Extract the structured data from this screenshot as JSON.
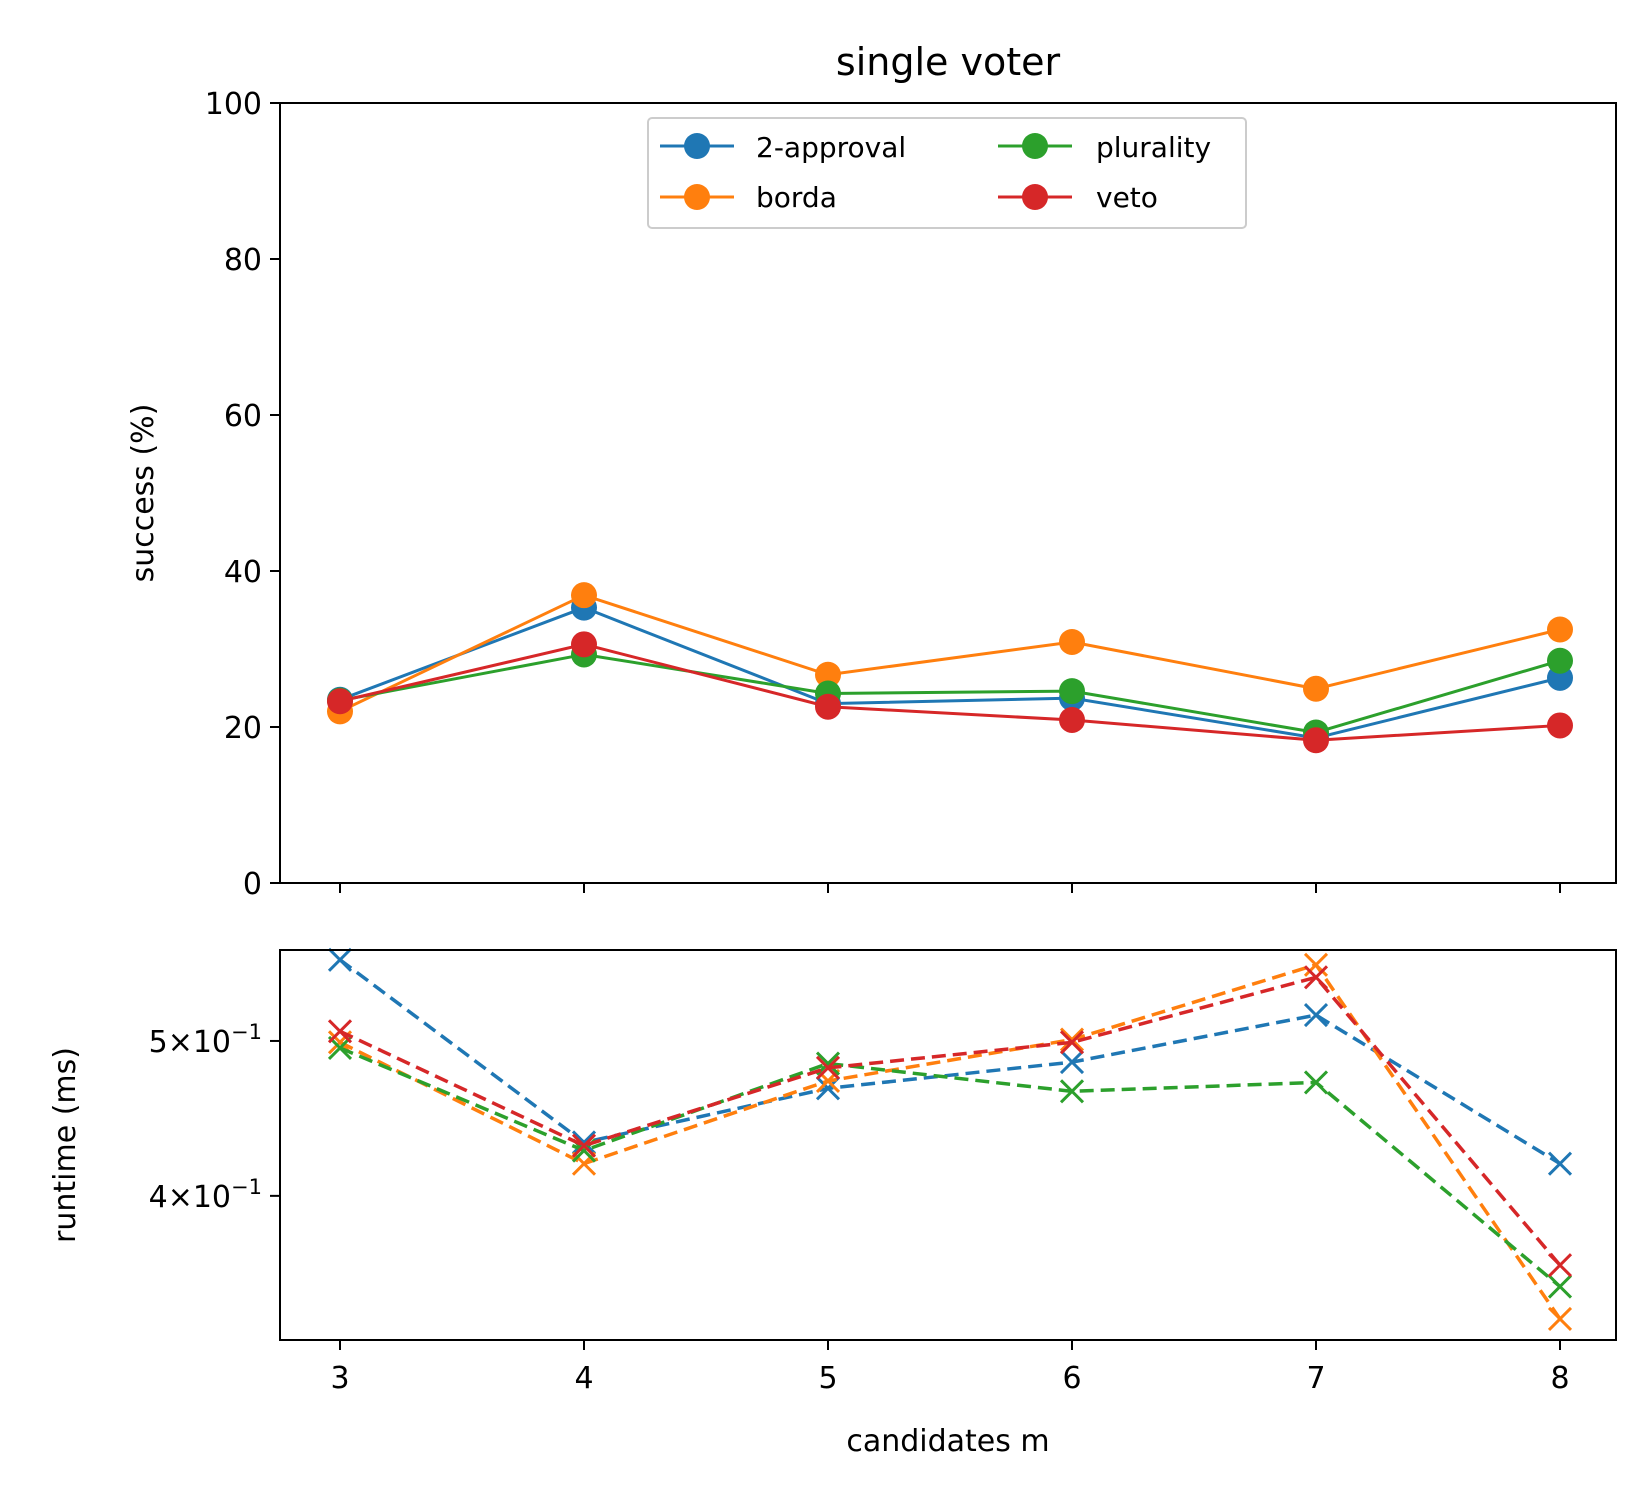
{
  "chart_data": [
    {
      "type": "line",
      "title": "single voter",
      "xlabel": "",
      "ylabel": "success (%)",
      "ylim": [
        0,
        100
      ],
      "y_ticks": [
        "0",
        "20",
        "40",
        "60",
        "80",
        "100"
      ],
      "x": [
        3,
        4,
        5,
        6,
        7,
        8
      ],
      "grid": false,
      "legend": {
        "placement": "upper center",
        "columns": 2
      },
      "series": [
        {
          "name": "2-approval",
          "color": "#1f77b4",
          "values": [
            23.5,
            35.3,
            23.0,
            23.7,
            18.6,
            26.3
          ]
        },
        {
          "name": "borda",
          "color": "#ff7f0e",
          "values": [
            22.0,
            36.9,
            26.7,
            30.9,
            24.9,
            32.5
          ]
        },
        {
          "name": "plurality",
          "color": "#2ca02c",
          "values": [
            23.4,
            29.3,
            24.3,
            24.6,
            19.3,
            28.5
          ]
        },
        {
          "name": "veto",
          "color": "#d62728",
          "values": [
            23.3,
            30.6,
            22.6,
            20.9,
            18.3,
            20.2
          ]
        }
      ]
    },
    {
      "type": "line",
      "title": "",
      "xlabel": "candidates m",
      "ylabel": "runtime (ms)",
      "yscale": "log",
      "ylim": [
        0.325,
        0.57
      ],
      "x_ticks": [
        "3",
        "4",
        "5",
        "6",
        "7",
        "8"
      ],
      "y_ticks": [
        {
          "value": 0.5,
          "mantissa": "5",
          "exponent": "−1"
        },
        {
          "value": 0.4,
          "mantissa": "4",
          "exponent": "−1"
        }
      ],
      "x": [
        3,
        4,
        5,
        6,
        7,
        8
      ],
      "grid": false,
      "series": [
        {
          "color": "#1f77b4",
          "values": [
            0.562,
            0.432,
            0.467,
            0.485,
            0.519,
            0.419
          ]
        },
        {
          "color": "#ff7f0e",
          "values": [
            0.499,
            0.419,
            0.472,
            0.501,
            0.558,
            0.335
          ]
        },
        {
          "color": "#2ca02c",
          "values": [
            0.495,
            0.427,
            0.484,
            0.465,
            0.471,
            0.351
          ]
        },
        {
          "color": "#d62728",
          "values": [
            0.507,
            0.43,
            0.481,
            0.499,
            0.548,
            0.362
          ]
        }
      ]
    }
  ]
}
